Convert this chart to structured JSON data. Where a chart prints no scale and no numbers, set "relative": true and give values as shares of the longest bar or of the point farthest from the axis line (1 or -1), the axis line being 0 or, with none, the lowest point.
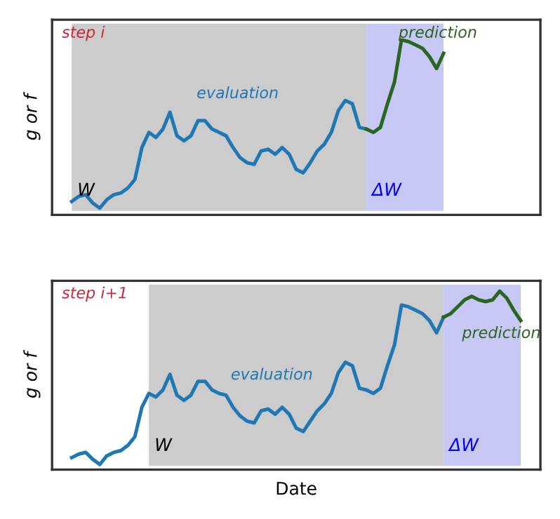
{
  "chart_data": [
    {
      "type": "line",
      "relative": true,
      "ylabel": "g or f",
      "tick_labels": false,
      "legend": false,
      "categories": [
        null,
        null,
        null,
        null,
        null,
        null,
        null,
        null,
        null,
        null,
        null,
        null,
        null,
        null,
        null,
        null,
        null,
        null,
        null,
        null,
        null,
        null,
        null,
        null,
        null,
        null,
        null,
        null,
        null,
        null,
        null,
        null,
        null,
        null,
        null,
        null,
        null,
        null,
        null,
        null,
        null,
        null,
        null,
        null,
        null,
        null,
        null,
        null,
        null,
        null,
        null,
        null,
        null,
        null,
        null,
        null,
        null,
        null,
        null,
        null,
        null,
        null,
        null,
        null,
        null
      ],
      "series": [
        {
          "name": "evaluation",
          "color": "#1f77b4",
          "values": [
            0.04,
            0.07,
            0.08,
            0.03,
            0,
            0.05,
            0.08,
            0.09,
            0.12,
            0.17,
            0.36,
            0.45,
            0.42,
            0.47,
            0.57,
            0.43,
            0.4,
            0.43,
            0.52,
            0.52,
            0.47,
            0.45,
            0.43,
            0.36,
            0.3,
            0.27,
            0.26,
            0.34,
            0.35,
            0.32,
            0.36,
            0.32,
            0.23,
            0.21,
            0.27,
            0.34,
            0.38,
            0.45,
            0.58,
            0.64,
            0.62,
            0.48,
            0.47,
            null,
            null,
            null,
            null,
            null,
            null,
            null,
            null,
            null,
            null,
            null,
            null,
            null,
            null,
            null,
            null,
            null,
            null,
            null,
            null,
            null,
            null
          ]
        },
        {
          "name": "prediction",
          "color": "#2b6522",
          "values": [
            null,
            null,
            null,
            null,
            null,
            null,
            null,
            null,
            null,
            null,
            null,
            null,
            null,
            null,
            null,
            null,
            null,
            null,
            null,
            null,
            null,
            null,
            null,
            null,
            null,
            null,
            null,
            null,
            null,
            null,
            null,
            null,
            null,
            null,
            null,
            null,
            null,
            null,
            null,
            null,
            null,
            null,
            0.47,
            0.45,
            0.48,
            0.62,
            0.75,
            1,
            0.99,
            0.97,
            0.95,
            0.9,
            0.83,
            0.92,
            null,
            null,
            null,
            null,
            null,
            null,
            null,
            null,
            null,
            null,
            null
          ]
        }
      ],
      "annotations": [
        "step i",
        "W",
        "ΔW"
      ]
    },
    {
      "type": "line",
      "relative": true,
      "ylabel": "g or f",
      "xlabel": "Date",
      "tick_labels": false,
      "legend": false,
      "categories": [
        null,
        null,
        null,
        null,
        null,
        null,
        null,
        null,
        null,
        null,
        null,
        null,
        null,
        null,
        null,
        null,
        null,
        null,
        null,
        null,
        null,
        null,
        null,
        null,
        null,
        null,
        null,
        null,
        null,
        null,
        null,
        null,
        null,
        null,
        null,
        null,
        null,
        null,
        null,
        null,
        null,
        null,
        null,
        null,
        null,
        null,
        null,
        null,
        null,
        null,
        null,
        null,
        null,
        null,
        null,
        null,
        null,
        null,
        null,
        null,
        null,
        null,
        null,
        null,
        null
      ],
      "series": [
        {
          "name": "evaluation",
          "color": "#1f77b4",
          "values": [
            0.04,
            0.06,
            0.07,
            0.03,
            0,
            0.05,
            0.07,
            0.08,
            0.11,
            0.16,
            0.33,
            0.41,
            0.39,
            0.43,
            0.52,
            0.4,
            0.37,
            0.4,
            0.48,
            0.48,
            0.43,
            0.41,
            0.4,
            0.33,
            0.28,
            0.25,
            0.24,
            0.31,
            0.32,
            0.29,
            0.33,
            0.29,
            0.21,
            0.19,
            0.25,
            0.31,
            0.35,
            0.41,
            0.53,
            0.59,
            0.57,
            0.44,
            0.43,
            0.41,
            0.44,
            0.57,
            0.69,
            0.92,
            0.91,
            0.89,
            0.87,
            0.83,
            0.76,
            0.85,
            null,
            null,
            null,
            null,
            null,
            null,
            null,
            null,
            null,
            null,
            null
          ]
        },
        {
          "name": "prediction",
          "color": "#2b6522",
          "values": [
            null,
            null,
            null,
            null,
            null,
            null,
            null,
            null,
            null,
            null,
            null,
            null,
            null,
            null,
            null,
            null,
            null,
            null,
            null,
            null,
            null,
            null,
            null,
            null,
            null,
            null,
            null,
            null,
            null,
            null,
            null,
            null,
            null,
            null,
            null,
            null,
            null,
            null,
            null,
            null,
            null,
            null,
            null,
            null,
            null,
            null,
            null,
            null,
            null,
            null,
            null,
            null,
            null,
            0.85,
            0.87,
            0.91,
            0.95,
            0.97,
            0.95,
            0.94,
            0.95,
            1,
            0.96,
            0.89,
            0.83
          ]
        }
      ],
      "annotations": [
        "step i+1",
        "W",
        "ΔW"
      ]
    }
  ]
}
